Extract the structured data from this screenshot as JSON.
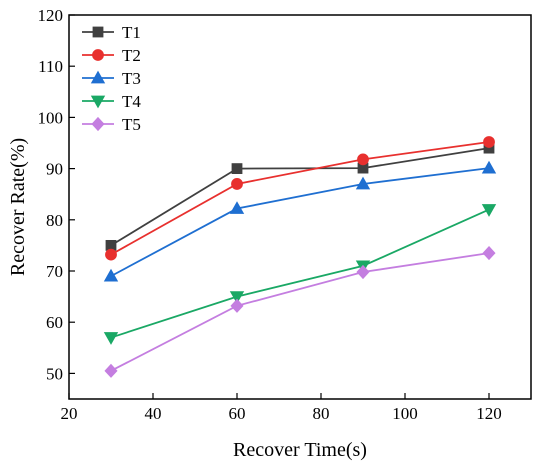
{
  "chart_data": {
    "type": "line",
    "title": "",
    "xlabel": "Recover Time(s)",
    "ylabel": "Recover Rate(%)",
    "xlim": [
      20,
      130
    ],
    "ylim": [
      45,
      120
    ],
    "xticks": [
      20,
      40,
      60,
      80,
      100,
      120
    ],
    "yticks": [
      50,
      60,
      70,
      80,
      90,
      100,
      110,
      120
    ],
    "grid": false,
    "legend_position": "top-left",
    "x": [
      30,
      60,
      90,
      120
    ],
    "series": [
      {
        "name": "T1",
        "values": [
          75.0,
          90.0,
          90.1,
          94.0
        ],
        "color": "#404040",
        "marker": "square"
      },
      {
        "name": "T2",
        "values": [
          73.2,
          87.0,
          91.8,
          95.2
        ],
        "color": "#e8302e",
        "marker": "circle"
      },
      {
        "name": "T3",
        "values": [
          69.0,
          82.2,
          87.0,
          90.1
        ],
        "color": "#1f6fd1",
        "marker": "triangle-up"
      },
      {
        "name": "T4",
        "values": [
          57.0,
          65.0,
          71.0,
          82.0
        ],
        "color": "#1aa865",
        "marker": "triangle-down"
      },
      {
        "name": "T5",
        "values": [
          50.5,
          63.2,
          69.8,
          73.5
        ],
        "color": "#c47ee0",
        "marker": "diamond"
      }
    ]
  }
}
